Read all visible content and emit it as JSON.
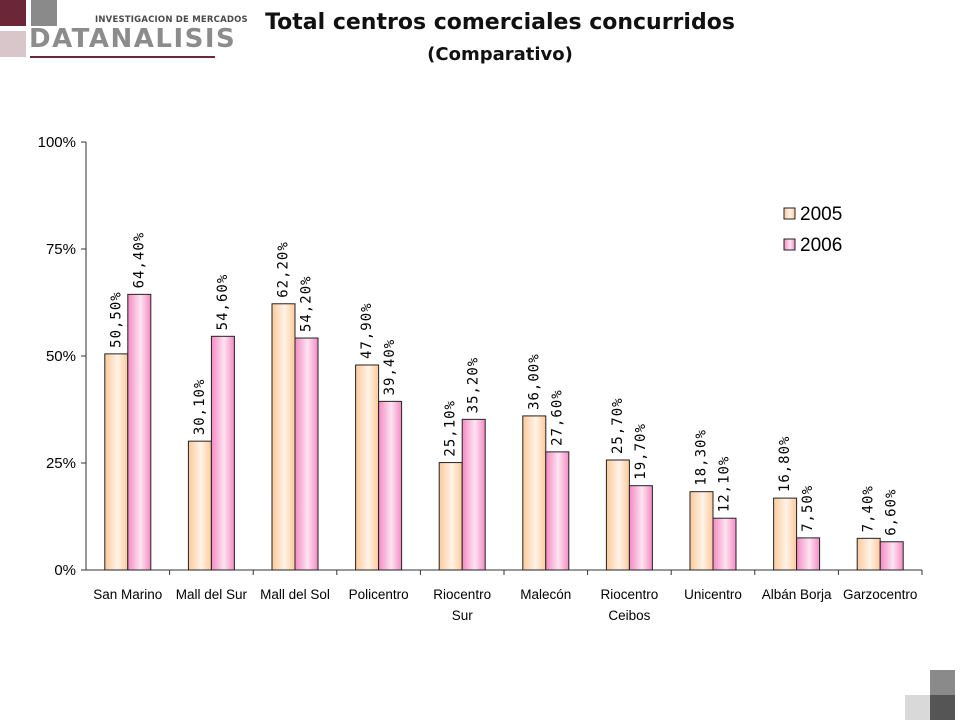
{
  "logo": {
    "tagline": "INVESTIGACION DE MERCADOS",
    "brand": "DATANALISIS",
    "colors": {
      "primary": "#6b2737",
      "gray": "#8a8a8a",
      "light": "#d9c6cb"
    }
  },
  "chart_data": {
    "type": "bar",
    "title": "Total centros comerciales concurridos",
    "subtitle": "(Comparativo)",
    "xlabel": "",
    "ylabel": "",
    "ylim": [
      0,
      100
    ],
    "yticks": [
      "0%",
      "25%",
      "50%",
      "75%",
      "100%"
    ],
    "grid": false,
    "legend_position": "right",
    "categories": [
      [
        "San Marino"
      ],
      [
        "Mall del Sur"
      ],
      [
        "Mall del Sol"
      ],
      [
        "Policentro"
      ],
      [
        "Riocentro",
        "Sur"
      ],
      [
        "Malecón"
      ],
      [
        "Riocentro",
        "Ceibos"
      ],
      [
        "Unicentro"
      ],
      [
        "Albán Borja"
      ],
      [
        "Garzocentro"
      ]
    ],
    "series": [
      {
        "name": "2005",
        "color": "#fdd9b5",
        "values": [
          50.5,
          30.1,
          62.2,
          47.9,
          25.1,
          36.0,
          25.7,
          18.3,
          16.8,
          7.4
        ],
        "labels": [
          "50,50%",
          "30,10%",
          "62,20%",
          "47,90%",
          "25,10%",
          "36,00%",
          "25,70%",
          "18,30%",
          "16,80%",
          "7,40%"
        ]
      },
      {
        "name": "2006",
        "color": "#f9a9d2",
        "values": [
          64.4,
          54.6,
          54.2,
          39.4,
          35.2,
          27.6,
          19.7,
          12.1,
          7.5,
          6.6
        ],
        "labels": [
          "64,40%",
          "54,60%",
          "54,20%",
          "39,40%",
          "35,20%",
          "27,60%",
          "19,70%",
          "12,10%",
          "7,50%",
          "6,60%"
        ]
      }
    ]
  }
}
